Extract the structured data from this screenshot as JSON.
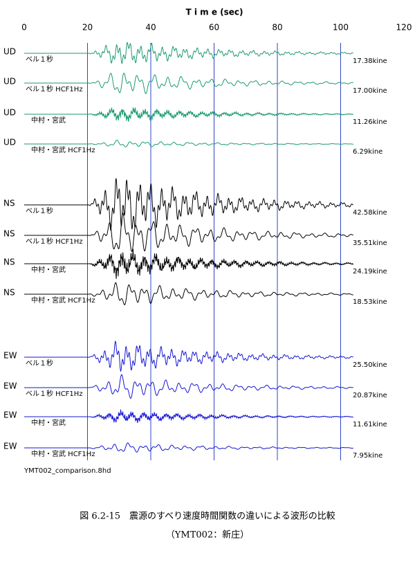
{
  "chart_data": {
    "type": "waveform",
    "xlabel": "T i m e (sec)",
    "xlim": [
      0,
      120
    ],
    "xticks": [
      0,
      20,
      40,
      60,
      80,
      100,
      120
    ],
    "grid": true,
    "traces": [
      {
        "component": "UD",
        "name": "ベル１秒",
        "color": "#1a9a6e",
        "peak": 17.38,
        "peak_label": "17.38kine"
      },
      {
        "component": "UD",
        "name": "ベル１秒 HCF1Hz",
        "color": "#1a9a6e",
        "peak": 17.0,
        "peak_label": "17.00kine"
      },
      {
        "component": "UD",
        "name": "中村・宮武",
        "color": "#1a9a6e",
        "peak": 11.26,
        "peak_label": "11.26kine"
      },
      {
        "component": "UD",
        "name": "中村・宮武 HCF1Hz",
        "color": "#1a9a6e",
        "peak": 6.29,
        "peak_label": "6.29kine"
      },
      {
        "component": "NS",
        "name": "ベル１秒",
        "color": "#000000",
        "peak": 42.58,
        "peak_label": "42.58kine"
      },
      {
        "component": "NS",
        "name": "ベル１秒 HCF1Hz",
        "color": "#000000",
        "peak": 35.51,
        "peak_label": "35.51kine"
      },
      {
        "component": "NS",
        "name": "中村・宮武",
        "color": "#000000",
        "peak": 24.19,
        "peak_label": "24.19kine"
      },
      {
        "component": "NS",
        "name": "中村・宮武 HCF1Hz",
        "color": "#000000",
        "peak": 18.53,
        "peak_label": "18.53kine"
      },
      {
        "component": "EW",
        "name": "ベル１秒",
        "color": "#1414d2",
        "peak": 25.5,
        "peak_label": "25.50kine"
      },
      {
        "component": "EW",
        "name": "ベル１秒 HCF1Hz",
        "color": "#1414d2",
        "peak": 20.87,
        "peak_label": "20.87kine"
      },
      {
        "component": "EW",
        "name": "中村・宮武",
        "color": "#1414d2",
        "peak": 11.61,
        "peak_label": "11.61kine"
      },
      {
        "component": "EW",
        "name": "中村・宮武 HCF1Hz",
        "color": "#1414d2",
        "peak": 7.95,
        "peak_label": "7.95kine"
      }
    ],
    "filename": "YMT002_comparison.8hd"
  },
  "caption": {
    "line1": "図 6.2-15　震源のすべり速度時間関数の違いによる波形の比較",
    "line2": "（YMT002：新庄）"
  }
}
